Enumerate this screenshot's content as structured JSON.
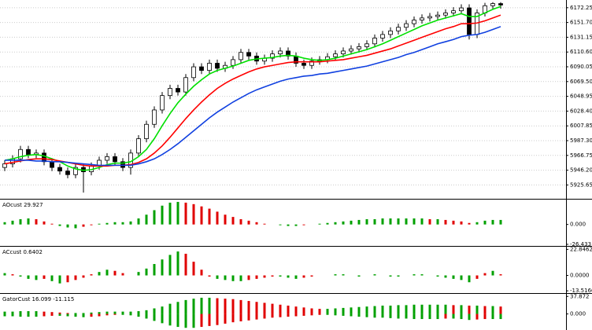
{
  "chart_data": [
    {
      "type": "candlestick",
      "up_fill": "#ffffff",
      "down_fill": "#000000",
      "outline": "#000000",
      "open": [
        5950,
        5955,
        5962,
        5975,
        5968,
        5970,
        5958,
        5950,
        5945,
        5940,
        5950,
        5944,
        5952,
        5960,
        5965,
        5958,
        5950,
        5970,
        5990,
        6010,
        6030,
        6050,
        6060,
        6055,
        6075,
        6090,
        6085,
        6095,
        6088,
        6092,
        6100,
        6110,
        6105,
        6098,
        6102,
        6108,
        6112,
        6105,
        6095,
        6092,
        6098,
        6100,
        6104,
        6108,
        6112,
        6115,
        6118,
        6122,
        6130,
        6135,
        6140,
        6145,
        6150,
        6155,
        6158,
        6160,
        6162,
        6165,
        6168,
        6172,
        6135,
        6165,
        6175,
        6178
      ],
      "high": [
        5960,
        5967,
        5980,
        5980,
        5975,
        5975,
        5963,
        5955,
        5950,
        5955,
        5955,
        5957,
        5965,
        5970,
        5970,
        5963,
        5975,
        5995,
        6015,
        6035,
        6055,
        6065,
        6065,
        6080,
        6095,
        6095,
        6100,
        6100,
        6097,
        6105,
        6115,
        6115,
        6110,
        6107,
        6113,
        6117,
        6117,
        6110,
        6100,
        6103,
        6105,
        6109,
        6113,
        6117,
        6120,
        6123,
        6127,
        6135,
        6140,
        6145,
        6150,
        6155,
        6160,
        6163,
        6165,
        6167,
        6170,
        6173,
        6177,
        6177,
        6170,
        6179,
        6180,
        6180
      ],
      "low": [
        5945,
        5950,
        5957,
        5963,
        5963,
        5953,
        5945,
        5940,
        5935,
        5935,
        5915,
        5939,
        5947,
        5955,
        5953,
        5945,
        5940,
        5965,
        5985,
        6005,
        6025,
        6045,
        6050,
        6050,
        6070,
        6080,
        6080,
        6083,
        6083,
        6087,
        6095,
        6100,
        6093,
        6093,
        6097,
        6103,
        6100,
        6090,
        6087,
        6087,
        6093,
        6095,
        6099,
        6103,
        6107,
        6110,
        6113,
        6117,
        6125,
        6130,
        6135,
        6140,
        6145,
        6150,
        6153,
        6155,
        6157,
        6160,
        6163,
        6128,
        6130,
        6160,
        6170,
        6171
      ],
      "close": [
        5955,
        5962,
        5975,
        5968,
        5970,
        5958,
        5950,
        5945,
        5940,
        5950,
        5944,
        5952,
        5960,
        5965,
        5958,
        5950,
        5970,
        5990,
        6010,
        6030,
        6050,
        6060,
        6055,
        6075,
        6090,
        6085,
        6095,
        6088,
        6092,
        6100,
        6110,
        6105,
        6098,
        6102,
        6108,
        6112,
        6105,
        6095,
        6092,
        6098,
        6100,
        6104,
        6108,
        6112,
        6115,
        6118,
        6122,
        6130,
        6135,
        6140,
        6145,
        6150,
        6155,
        6158,
        6160,
        6162,
        6165,
        6168,
        6172,
        6135,
        6165,
        6175,
        6178,
        6176
      ],
      "lines": [
        {
          "color": "#00e000",
          "values": [
            5960,
            5962,
            5965,
            5967,
            5968,
            5966,
            5962,
            5958,
            5952,
            5948,
            5946,
            5947,
            5950,
            5954,
            5956,
            5956,
            5958,
            5965,
            5975,
            5990,
            6008,
            6025,
            6040,
            6052,
            6063,
            6072,
            6080,
            6085,
            6088,
            6091,
            6095,
            6099,
            6101,
            6102,
            6103,
            6105,
            6106,
            6105,
            6102,
            6100,
            6099,
            6100,
            6102,
            6105,
            6108,
            6111,
            6114,
            6118,
            6122,
            6127,
            6132,
            6137,
            6142,
            6147,
            6151,
            6155,
            6158,
            6161,
            6164,
            6160,
            6160,
            6165,
            6170,
            6174
          ]
        },
        {
          "color": "#ff0000",
          "values": [
            5955,
            5957,
            5959,
            5961,
            5962,
            5962,
            5961,
            5959,
            5957,
            5955,
            5953,
            5952,
            5952,
            5952,
            5953,
            5953,
            5954,
            5957,
            5962,
            5970,
            5980,
            5992,
            6005,
            6018,
            6030,
            6041,
            6051,
            6060,
            6067,
            6073,
            6078,
            6083,
            6087,
            6090,
            6092,
            6094,
            6096,
            6097,
            6097,
            6097,
            6097,
            6098,
            6099,
            6100,
            6102,
            6104,
            6106,
            6109,
            6112,
            6115,
            6119,
            6123,
            6127,
            6131,
            6135,
            6139,
            6143,
            6146,
            6150,
            6150,
            6151,
            6154,
            6158,
            6162
          ]
        },
        {
          "color": "#1040e0",
          "values": [
            5960,
            5960,
            5960,
            5960,
            5959,
            5959,
            5958,
            5958,
            5957,
            5956,
            5955,
            5954,
            5953,
            5953,
            5953,
            5953,
            5953,
            5955,
            5958,
            5962,
            5968,
            5975,
            5983,
            5992,
            6001,
            6010,
            6019,
            6027,
            6034,
            6041,
            6047,
            6053,
            6058,
            6062,
            6066,
            6070,
            6073,
            6075,
            6077,
            6078,
            6080,
            6081,
            6083,
            6085,
            6087,
            6089,
            6091,
            6094,
            6097,
            6100,
            6103,
            6107,
            6110,
            6114,
            6118,
            6122,
            6125,
            6128,
            6132,
            6134,
            6135,
            6138,
            6142,
            6146
          ]
        }
      ],
      "ylim": [
        5907.5,
        6180.8
      ],
      "yticks": [
        6172.25,
        {
          "value": 6151.7,
          "label": "6151.70"
        },
        {
          "value": 6131.15,
          "label": "6131.15"
        },
        {
          "value": 6110.6,
          "label": "6110.60"
        },
        6090.05,
        {
          "value": 6069.5,
          "label": "6069.50"
        },
        6048.95,
        {
          "value": 6028.4,
          "label": "6028.40"
        },
        6007.85,
        {
          "value": 5987.3,
          "label": "5987.30"
        },
        5966.75,
        {
          "value": 5946.2,
          "label": "5946.20"
        },
        5925.65
      ],
      "grid": true
    },
    {
      "type": "bar",
      "title": "AOcust 29.927",
      "up_color": "#00a000",
      "down_color": "#e00000",
      "values": [
        3,
        5,
        7,
        8,
        7,
        4,
        1,
        -2,
        -4,
        -5,
        -3,
        -1,
        1,
        2,
        3,
        3,
        4,
        8,
        13,
        19,
        25,
        29,
        30,
        29,
        27,
        24,
        21,
        17,
        13,
        10,
        7,
        5,
        3,
        1,
        0,
        -1,
        -2,
        -2,
        -1,
        0,
        1,
        2,
        3,
        4,
        5,
        6,
        7,
        7,
        8,
        8,
        8,
        8,
        8,
        8,
        7,
        7,
        6,
        5,
        4,
        2,
        3,
        5,
        6,
        6
      ],
      "ylim": [
        -27.5,
        31
      ],
      "yticks": [
        {
          "value": 0,
          "label": "0.000"
        },
        -26.433
      ]
    },
    {
      "type": "bar",
      "title": "ACcust 0.6402",
      "up_color": "#00a000",
      "down_color": "#e00000",
      "values": [
        2,
        1,
        -1,
        -3,
        -4,
        -3,
        -5,
        -7,
        -6,
        -4,
        -2,
        1,
        3,
        5,
        4,
        2,
        0,
        3,
        6,
        10,
        14,
        18,
        21,
        19,
        12,
        5,
        -1,
        -3,
        -4,
        -5,
        -5,
        -4,
        -3,
        -2,
        -1,
        -1,
        -2,
        -3,
        -2,
        -1,
        0,
        0,
        1,
        1,
        0,
        -1,
        0,
        1,
        0,
        -1,
        -1,
        0,
        1,
        1,
        0,
        -1,
        -2,
        -3,
        -4,
        -6,
        -3,
        2,
        4,
        1
      ],
      "ylim": [
        -14.8,
        23.8
      ],
      "yticks": [
        22.8462,
        {
          "value": 0,
          "label": "0.0000"
        },
        -13.5166
      ]
    },
    {
      "type": "bar",
      "title": "GatorCust 16.099 -11.115",
      "up_color": "#00a000",
      "down_color": "#e00000",
      "series": [
        {
          "values": [
            5,
            5,
            6,
            6,
            6,
            5,
            4,
            3,
            2,
            2,
            2,
            3,
            4,
            5,
            5,
            5,
            5,
            6,
            8,
            12,
            16,
            22,
            26,
            30,
            33,
            35,
            35,
            34,
            33,
            32,
            30,
            28,
            26,
            24,
            22,
            20,
            18,
            16,
            14,
            12,
            11,
            11,
            12,
            13,
            14,
            15,
            16,
            17,
            18,
            18,
            19,
            19,
            20,
            20,
            20,
            20,
            20,
            19,
            19,
            18,
            18,
            17,
            17,
            16
          ]
        },
        {
          "values": [
            -5,
            -5,
            -6,
            -6,
            -6,
            -5,
            -4,
            -4,
            -5,
            -6,
            -7,
            -6,
            -5,
            -3,
            -2,
            -2,
            -3,
            -6,
            -10,
            -15,
            -20,
            -25,
            -28,
            -30,
            -30,
            -28,
            -26,
            -24,
            -21,
            -18,
            -16,
            -14,
            -12,
            -10,
            -8,
            -7,
            -6,
            -5,
            -4,
            -3,
            -2,
            -2,
            -3,
            -4,
            -5,
            -6,
            -7,
            -8,
            -8,
            -9,
            -10,
            -10,
            -11,
            -11,
            -11,
            -11,
            -10,
            -10,
            -11,
            -13,
            -12,
            -11,
            -11,
            -11
          ]
        }
      ],
      "ylim": [
        -33,
        40
      ],
      "yticks": [
        37.872,
        {
          "value": 0,
          "label": "0.000"
        }
      ]
    }
  ]
}
